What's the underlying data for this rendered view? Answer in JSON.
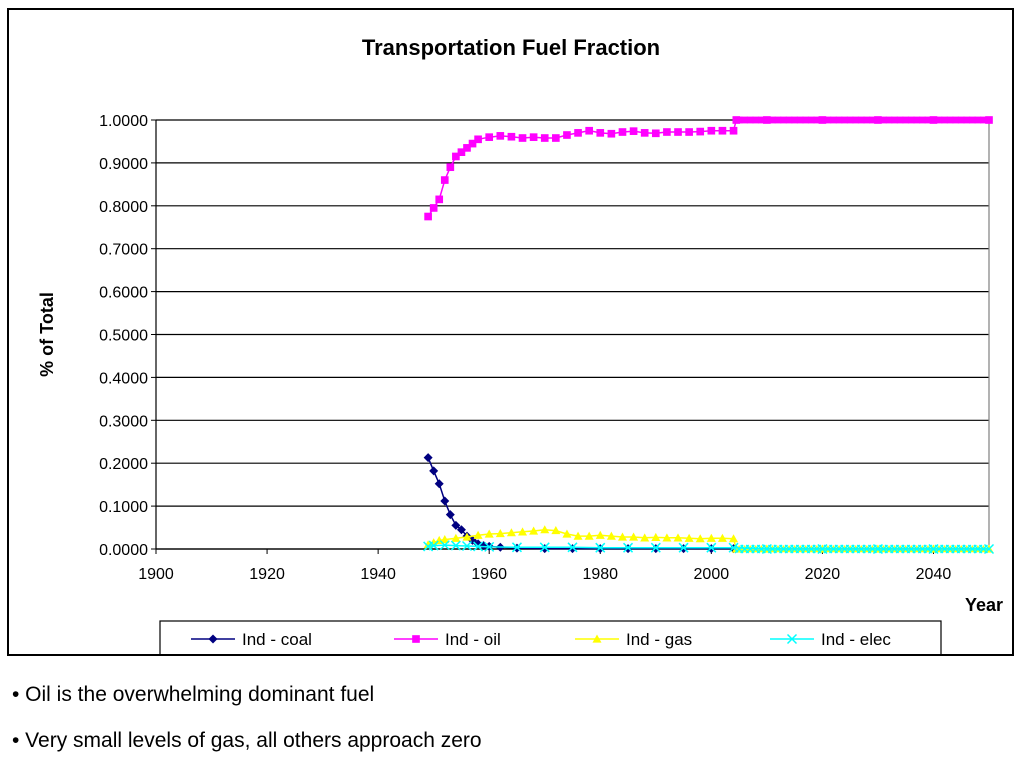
{
  "chart_data": {
    "type": "line",
    "title": "Transportation Fuel Fraction",
    "xlabel": "Year",
    "ylabel": "% of Total",
    "xlim": [
      1900,
      2050
    ],
    "ylim": [
      0,
      1
    ],
    "x_ticks": [
      "1900",
      "1920",
      "1940",
      "1960",
      "1980",
      "2000",
      "2020",
      "2040"
    ],
    "y_ticks": [
      "0.0000",
      "0.1000",
      "0.2000",
      "0.3000",
      "0.4000",
      "0.5000",
      "0.6000",
      "0.7000",
      "0.8000",
      "0.9000",
      "1.0000"
    ],
    "grid": "horizontal",
    "legend_position": "bottom",
    "series": [
      {
        "name": "Ind - coal",
        "color": "#000080",
        "marker": "diamond",
        "points": [
          [
            1949,
            0.213
          ],
          [
            1950,
            0.182
          ],
          [
            1951,
            0.152
          ],
          [
            1952,
            0.112
          ],
          [
            1953,
            0.08
          ],
          [
            1954,
            0.055
          ],
          [
            1955,
            0.045
          ],
          [
            1956,
            0.03
          ],
          [
            1957,
            0.02
          ],
          [
            1958,
            0.012
          ],
          [
            1959,
            0.008
          ],
          [
            1960,
            0.006
          ],
          [
            1962,
            0.004
          ],
          [
            1965,
            0.002
          ],
          [
            1970,
            0.001
          ],
          [
            1975,
            0.001
          ],
          [
            1980,
            0.001
          ],
          [
            1985,
            0.001
          ],
          [
            1990,
            0.001
          ],
          [
            1995,
            0.001
          ],
          [
            2000,
            0.001
          ],
          [
            2004,
            0.001
          ]
        ]
      },
      {
        "name": "Ind - oil",
        "color": "#ff00ff",
        "marker": "square",
        "points": [
          [
            1949,
            0.775
          ],
          [
            1950,
            0.795
          ],
          [
            1951,
            0.815
          ],
          [
            1952,
            0.86
          ],
          [
            1953,
            0.89
          ],
          [
            1954,
            0.915
          ],
          [
            1955,
            0.925
          ],
          [
            1956,
            0.935
          ],
          [
            1957,
            0.945
          ],
          [
            1958,
            0.955
          ],
          [
            1960,
            0.96
          ],
          [
            1962,
            0.963
          ],
          [
            1964,
            0.961
          ],
          [
            1966,
            0.958
          ],
          [
            1968,
            0.96
          ],
          [
            1970,
            0.958
          ],
          [
            1972,
            0.958
          ],
          [
            1974,
            0.965
          ],
          [
            1976,
            0.97
          ],
          [
            1978,
            0.975
          ],
          [
            1980,
            0.97
          ],
          [
            1982,
            0.968
          ],
          [
            1984,
            0.972
          ],
          [
            1986,
            0.974
          ],
          [
            1988,
            0.97
          ],
          [
            1990,
            0.969
          ],
          [
            1992,
            0.972
          ],
          [
            1994,
            0.972
          ],
          [
            1996,
            0.972
          ],
          [
            1998,
            0.973
          ],
          [
            2000,
            0.975
          ],
          [
            2002,
            0.975
          ],
          [
            2004,
            0.975
          ],
          [
            2004.5,
            1.0
          ],
          [
            2010,
            1.0
          ],
          [
            2020,
            1.0
          ],
          [
            2030,
            1.0
          ],
          [
            2040,
            1.0
          ],
          [
            2050,
            1.0
          ]
        ]
      },
      {
        "name": "Ind - gas",
        "color": "#ffff00",
        "marker": "triangle",
        "points": [
          [
            1949,
            0.01
          ],
          [
            1950,
            0.015
          ],
          [
            1951,
            0.02
          ],
          [
            1952,
            0.022
          ],
          [
            1954,
            0.025
          ],
          [
            1956,
            0.028
          ],
          [
            1958,
            0.032
          ],
          [
            1960,
            0.035
          ],
          [
            1962,
            0.036
          ],
          [
            1964,
            0.038
          ],
          [
            1966,
            0.04
          ],
          [
            1968,
            0.042
          ],
          [
            1970,
            0.045
          ],
          [
            1972,
            0.043
          ],
          [
            1974,
            0.035
          ],
          [
            1976,
            0.03
          ],
          [
            1978,
            0.03
          ],
          [
            1980,
            0.032
          ],
          [
            1982,
            0.03
          ],
          [
            1984,
            0.028
          ],
          [
            1986,
            0.028
          ],
          [
            1988,
            0.026
          ],
          [
            1990,
            0.027
          ],
          [
            1992,
            0.026
          ],
          [
            1994,
            0.026
          ],
          [
            1996,
            0.025
          ],
          [
            1998,
            0.024
          ],
          [
            2000,
            0.025
          ],
          [
            2002,
            0.025
          ],
          [
            2004,
            0.024
          ],
          [
            2004.5,
            0.0
          ],
          [
            2010,
            0.0
          ],
          [
            2020,
            0.0
          ],
          [
            2030,
            0.0
          ],
          [
            2040,
            0.0
          ],
          [
            2050,
            0.0
          ]
        ]
      },
      {
        "name": "Ind - elec",
        "color": "#00ffff",
        "marker": "x",
        "points": [
          [
            1949,
            0.006
          ],
          [
            1950,
            0.008
          ],
          [
            1952,
            0.009
          ],
          [
            1954,
            0.008
          ],
          [
            1956,
            0.007
          ],
          [
            1958,
            0.006
          ],
          [
            1960,
            0.005
          ],
          [
            1965,
            0.004
          ],
          [
            1970,
            0.004
          ],
          [
            1975,
            0.004
          ],
          [
            1980,
            0.003
          ],
          [
            1985,
            0.003
          ],
          [
            1990,
            0.003
          ],
          [
            1995,
            0.003
          ],
          [
            2000,
            0.003
          ],
          [
            2004,
            0.003
          ],
          [
            2010,
            0.0
          ],
          [
            2020,
            0.0
          ],
          [
            2030,
            0.0
          ],
          [
            2040,
            0.0
          ],
          [
            2050,
            0.0
          ]
        ]
      }
    ]
  },
  "bullets": [
    "• Oil is the overwhelming dominant fuel",
    "• Very small levels of gas, all others approach zero"
  ]
}
